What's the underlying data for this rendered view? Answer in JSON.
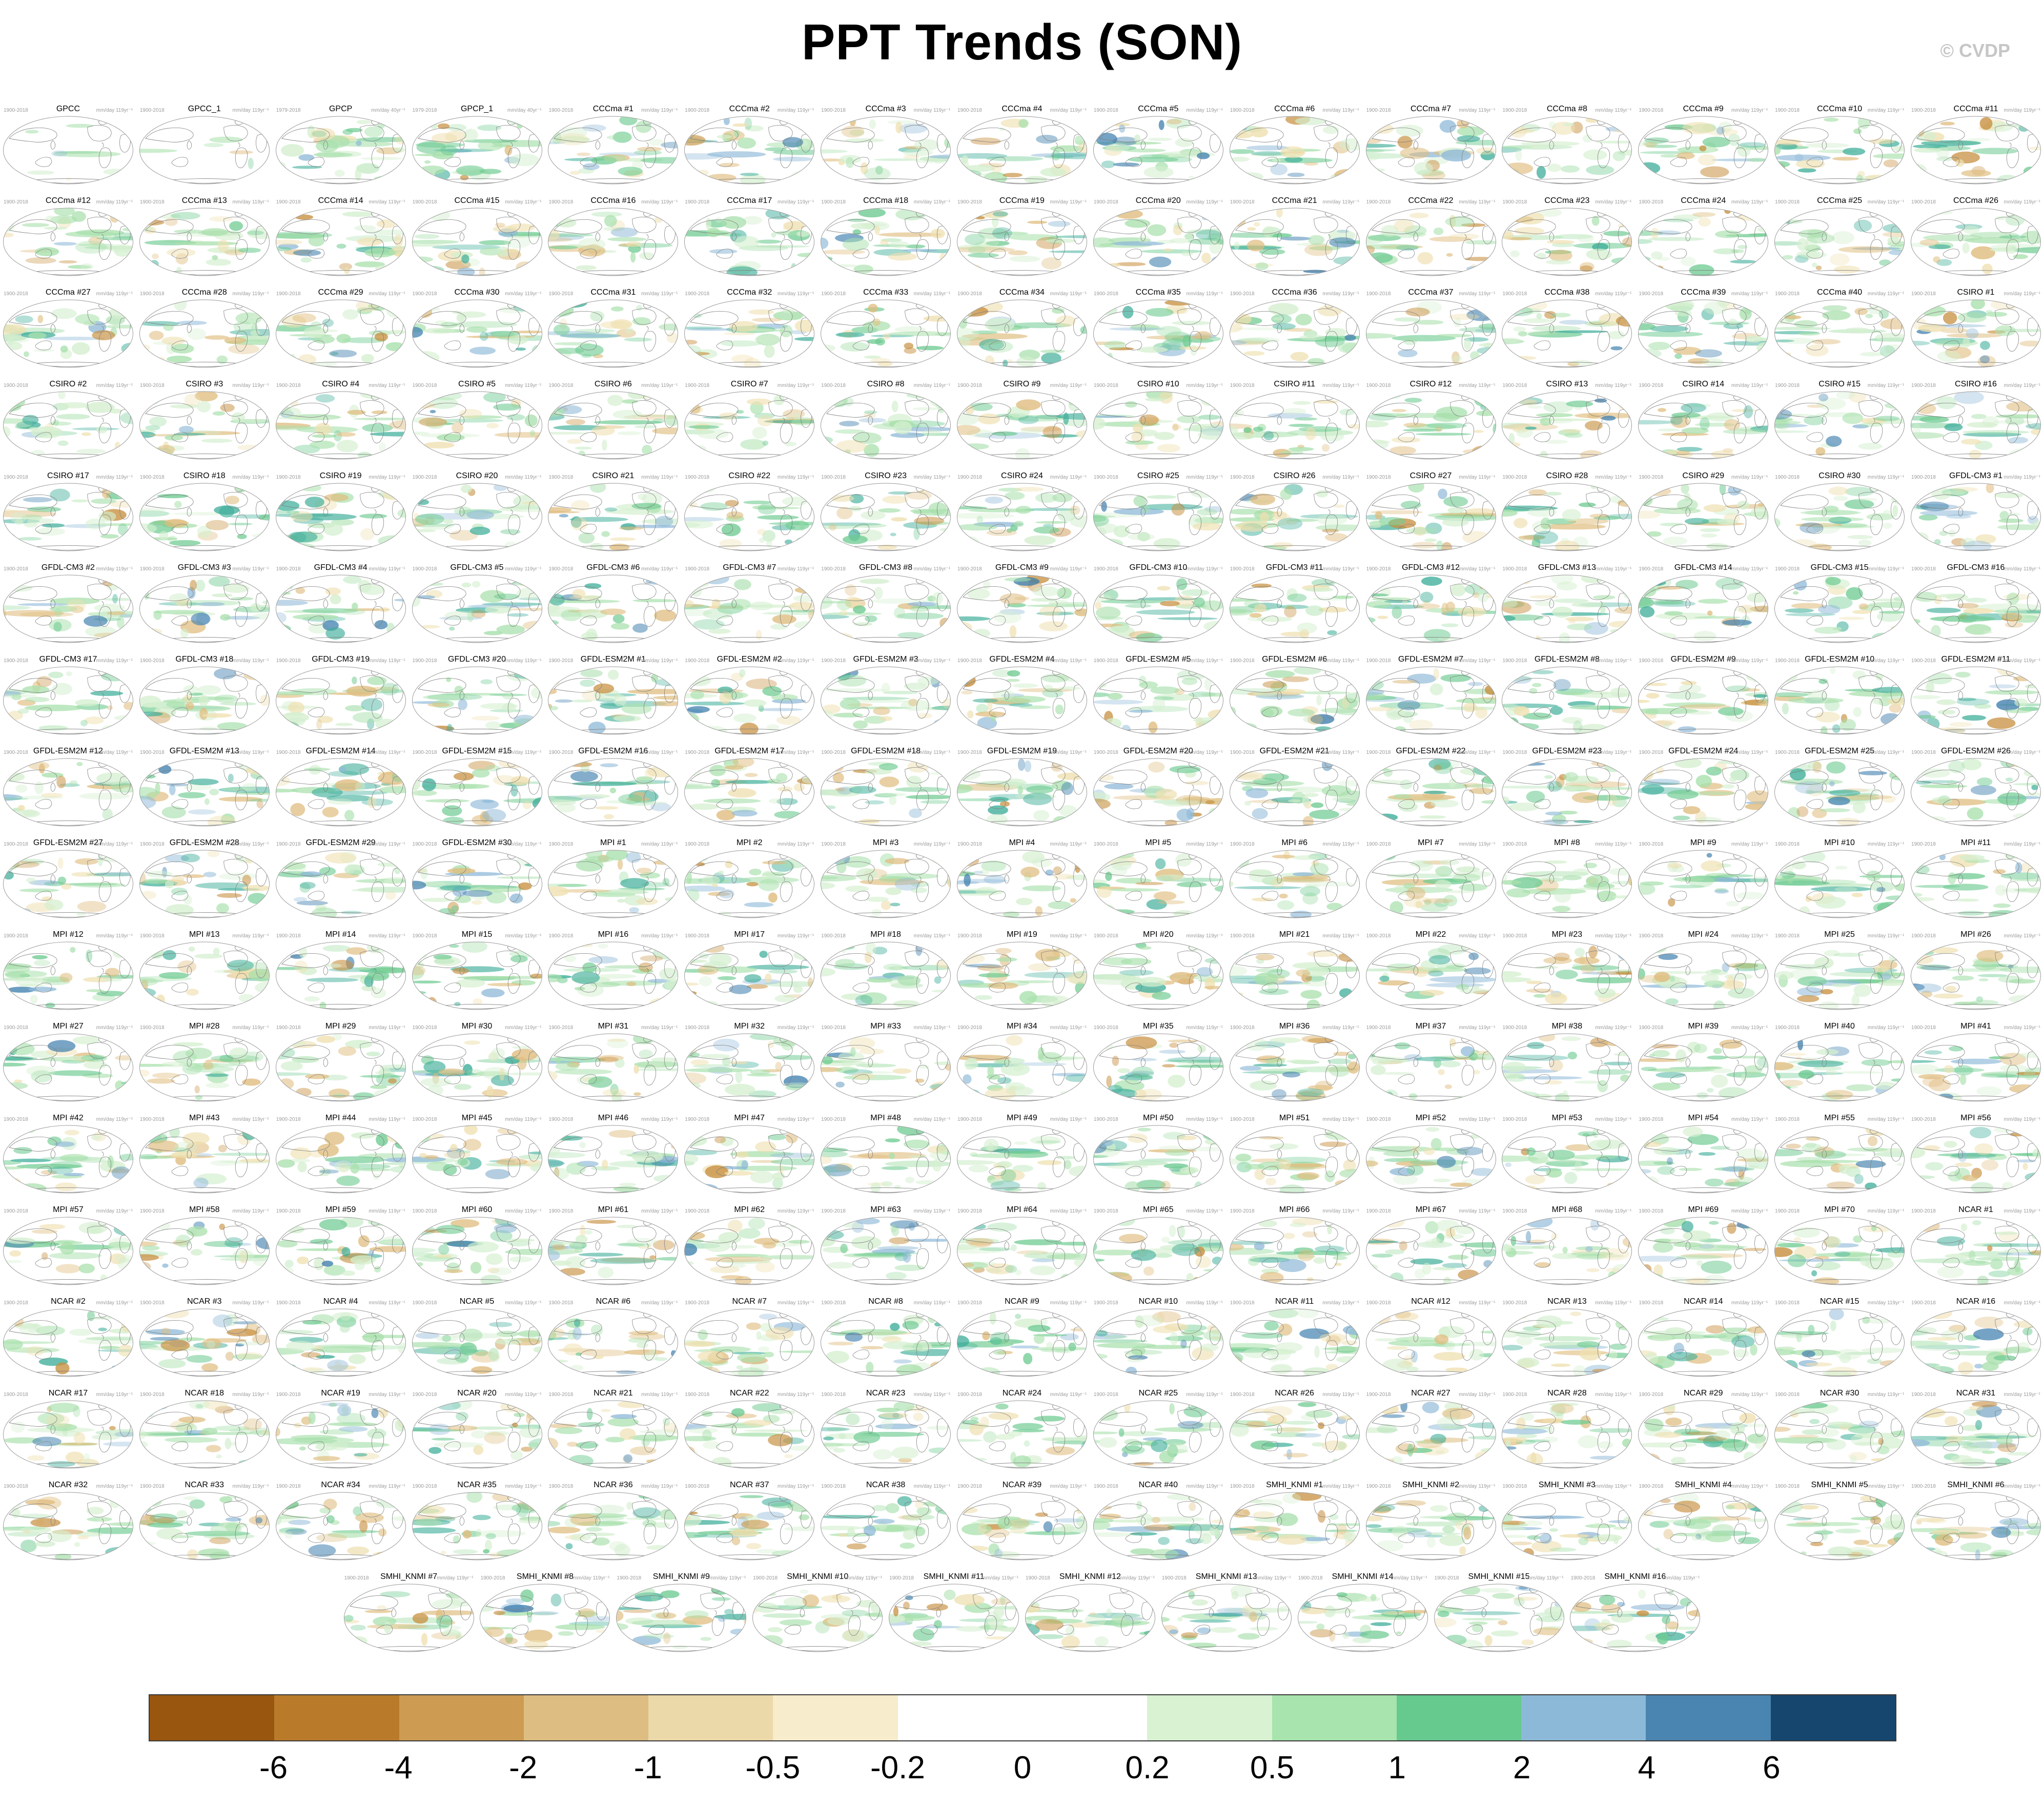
{
  "title": "PPT Trends (SON)",
  "watermark": "© CVDP",
  "panel_defaults": {
    "period": "1900-2018",
    "units": "mm/day 119yr⁻¹"
  },
  "panel_period_overrides": {
    "GPCP": "1979-2018",
    "GPCP_1": "1979-2018"
  },
  "panel_units_overrides": {
    "GPCP": "mm/day 40yr⁻¹",
    "GPCP_1": "mm/day 40yr⁻¹"
  },
  "panel_variants": {
    "GPCC": "sparse",
    "GPCC_1": "sparse",
    "GPCP": "vivid",
    "GPCP_1": "vivid"
  },
  "rows": [
    {
      "centered": false,
      "panels": [
        "GPCC",
        "GPCC_1",
        "GPCP",
        "GPCP_1",
        "CCCma #1",
        "CCCma #2",
        "CCCma #3",
        "CCCma #4",
        "CCCma #5",
        "CCCma #6",
        "CCCma #7",
        "CCCma #8",
        "CCCma #9",
        "CCCma #10",
        "CCCma #11"
      ]
    },
    {
      "centered": false,
      "panels": [
        "CCCma #12",
        "CCCma #13",
        "CCCma #14",
        "CCCma #15",
        "CCCma #16",
        "CCCma #17",
        "CCCma #18",
        "CCCma #19",
        "CCCma #20",
        "CCCma #21",
        "CCCma #22",
        "CCCma #23",
        "CCCma #24",
        "CCCma #25",
        "CCCma #26"
      ]
    },
    {
      "centered": false,
      "panels": [
        "CCCma #27",
        "CCCma #28",
        "CCCma #29",
        "CCCma #30",
        "CCCma #31",
        "CCCma #32",
        "CCCma #33",
        "CCCma #34",
        "CCCma #35",
        "CCCma #36",
        "CCCma #37",
        "CCCma #38",
        "CCCma #39",
        "CCCma #40",
        "CSIRO #1"
      ]
    },
    {
      "centered": false,
      "panels": [
        "CSIRO #2",
        "CSIRO #3",
        "CSIRO #4",
        "CSIRO #5",
        "CSIRO #6",
        "CSIRO #7",
        "CSIRO #8",
        "CSIRO #9",
        "CSIRO #10",
        "CSIRO #11",
        "CSIRO #12",
        "CSIRO #13",
        "CSIRO #14",
        "CSIRO #15",
        "CSIRO #16"
      ]
    },
    {
      "centered": false,
      "panels": [
        "CSIRO #17",
        "CSIRO #18",
        "CSIRO #19",
        "CSIRO #20",
        "CSIRO #21",
        "CSIRO #22",
        "CSIRO #23",
        "CSIRO #24",
        "CSIRO #25",
        "CSIRO #26",
        "CSIRO #27",
        "CSIRO #28",
        "CSIRO #29",
        "CSIRO #30",
        "GFDL-CM3 #1"
      ]
    },
    {
      "centered": false,
      "panels": [
        "GFDL-CM3 #2",
        "GFDL-CM3 #3",
        "GFDL-CM3 #4",
        "GFDL-CM3 #5",
        "GFDL-CM3 #6",
        "GFDL-CM3 #7",
        "GFDL-CM3 #8",
        "GFDL-CM3 #9",
        "GFDL-CM3 #10",
        "GFDL-CM3 #11",
        "GFDL-CM3 #12",
        "GFDL-CM3 #13",
        "GFDL-CM3 #14",
        "GFDL-CM3 #15",
        "GFDL-CM3 #16"
      ]
    },
    {
      "centered": false,
      "panels": [
        "GFDL-CM3 #17",
        "GFDL-CM3 #18",
        "GFDL-CM3 #19",
        "GFDL-CM3 #20",
        "GFDL-ESM2M #1",
        "GFDL-ESM2M #2",
        "GFDL-ESM2M #3",
        "GFDL-ESM2M #4",
        "GFDL-ESM2M #5",
        "GFDL-ESM2M #6",
        "GFDL-ESM2M #7",
        "GFDL-ESM2M #8",
        "GFDL-ESM2M #9",
        "GFDL-ESM2M #10",
        "GFDL-ESM2M #11"
      ]
    },
    {
      "centered": false,
      "panels": [
        "GFDL-ESM2M #12",
        "GFDL-ESM2M #13",
        "GFDL-ESM2M #14",
        "GFDL-ESM2M #15",
        "GFDL-ESM2M #16",
        "GFDL-ESM2M #17",
        "GFDL-ESM2M #18",
        "GFDL-ESM2M #19",
        "GFDL-ESM2M #20",
        "GFDL-ESM2M #21",
        "GFDL-ESM2M #22",
        "GFDL-ESM2M #23",
        "GFDL-ESM2M #24",
        "GFDL-ESM2M #25",
        "GFDL-ESM2M #26"
      ]
    },
    {
      "centered": false,
      "panels": [
        "GFDL-ESM2M #27",
        "GFDL-ESM2M #28",
        "GFDL-ESM2M #29",
        "GFDL-ESM2M #30",
        "MPI #1",
        "MPI #2",
        "MPI #3",
        "MPI #4",
        "MPI #5",
        "MPI #6",
        "MPI #7",
        "MPI #8",
        "MPI #9",
        "MPI #10",
        "MPI #11"
      ]
    },
    {
      "centered": false,
      "panels": [
        "MPI #12",
        "MPI #13",
        "MPI #14",
        "MPI #15",
        "MPI #16",
        "MPI #17",
        "MPI #18",
        "MPI #19",
        "MPI #20",
        "MPI #21",
        "MPI #22",
        "MPI #23",
        "MPI #24",
        "MPI #25",
        "MPI #26"
      ]
    },
    {
      "centered": false,
      "panels": [
        "MPI #27",
        "MPI #28",
        "MPI #29",
        "MPI #30",
        "MPI #31",
        "MPI #32",
        "MPI #33",
        "MPI #34",
        "MPI #35",
        "MPI #36",
        "MPI #37",
        "MPI #38",
        "MPI #39",
        "MPI #40",
        "MPI #41"
      ]
    },
    {
      "centered": false,
      "panels": [
        "MPI #42",
        "MPI #43",
        "MPI #44",
        "MPI #45",
        "MPI #46",
        "MPI #47",
        "MPI #48",
        "MPI #49",
        "MPI #50",
        "MPI #51",
        "MPI #52",
        "MPI #53",
        "MPI #54",
        "MPI #55",
        "MPI #56"
      ]
    },
    {
      "centered": false,
      "panels": [
        "MPI #57",
        "MPI #58",
        "MPI #59",
        "MPI #60",
        "MPI #61",
        "MPI #62",
        "MPI #63",
        "MPI #64",
        "MPI #65",
        "MPI #66",
        "MPI #67",
        "MPI #68",
        "MPI #69",
        "MPI #70",
        "NCAR #1"
      ]
    },
    {
      "centered": false,
      "panels": [
        "NCAR #2",
        "NCAR #3",
        "NCAR #4",
        "NCAR #5",
        "NCAR #6",
        "NCAR #7",
        "NCAR #8",
        "NCAR #9",
        "NCAR #10",
        "NCAR #11",
        "NCAR #12",
        "NCAR #13",
        "NCAR #14",
        "NCAR #15",
        "NCAR #16"
      ]
    },
    {
      "centered": false,
      "panels": [
        "NCAR #17",
        "NCAR #18",
        "NCAR #19",
        "NCAR #20",
        "NCAR #21",
        "NCAR #22",
        "NCAR #23",
        "NCAR #24",
        "NCAR #25",
        "NCAR #26",
        "NCAR #27",
        "NCAR #28",
        "NCAR #29",
        "NCAR #30",
        "NCAR #31"
      ]
    },
    {
      "centered": false,
      "panels": [
        "NCAR #32",
        "NCAR #33",
        "NCAR #34",
        "NCAR #35",
        "NCAR #36",
        "NCAR #37",
        "NCAR #38",
        "NCAR #39",
        "NCAR #40",
        "SMHI_KNMI #1",
        "SMHI_KNMI #2",
        "SMHI_KNMI #3",
        "SMHI_KNMI #4",
        "SMHI_KNMI #5",
        "SMHI_KNMI #6"
      ]
    },
    {
      "centered": true,
      "panels": [
        "SMHI_KNMI #7",
        "SMHI_KNMI #8",
        "SMHI_KNMI #9",
        "SMHI_KNMI #10",
        "SMHI_KNMI #11",
        "SMHI_KNMI #12",
        "SMHI_KNMI #13",
        "SMHI_KNMI #14",
        "SMHI_KNMI #15",
        "SMHI_KNMI #16"
      ]
    }
  ],
  "map_palette": {
    "pale_green": "#d4efcf",
    "green": "#a8e0ac",
    "deep_green": "#6fcb92",
    "teal": "#3fae9a",
    "pale_tan": "#efe0b0",
    "tan": "#dfbc7d",
    "brown": "#c78f3f",
    "light_blue": "#8fb9d8",
    "blue": "#3f7fae"
  },
  "colorbar": {
    "tick_labels": [
      "-6",
      "-4",
      "-2",
      "-1",
      "-0.5",
      "-0.2",
      "0",
      "0.2",
      "0.5",
      "1",
      "2",
      "4",
      "6"
    ],
    "segment_colors": [
      "#99560f",
      "#b97b2a",
      "#cd9b52",
      "#ddbd82",
      "#ecd9a9",
      "#f7eccb",
      "#ffffff",
      "#ffffff",
      "#d8f2d2",
      "#a8e4ad",
      "#66c98e",
      "#8db9d8",
      "#4a84b0",
      "#16466e"
    ]
  }
}
